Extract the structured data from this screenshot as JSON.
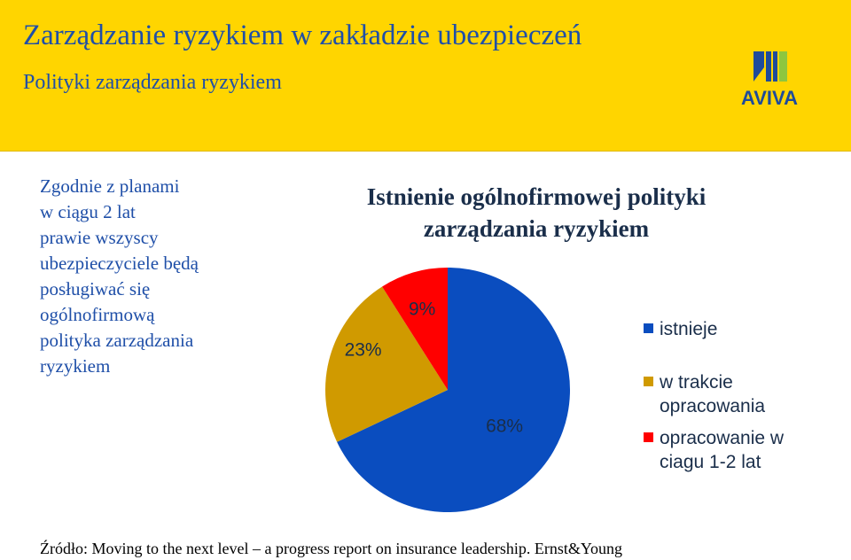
{
  "header": {
    "title": "Zarządzanie ryzykiem w zakładzie ubezpieczeń",
    "subtitle": "Polityki zarządzania ryzykiem",
    "logo_text": "AVIVA"
  },
  "body_text": [
    "Zgodnie z planami",
    "w ciągu 2 lat",
    "prawie wszyscy",
    "ubezpieczyciele będą",
    "posługiwać się",
    "ogólnofirmową",
    "polityka  zarządzania",
    "ryzykiem"
  ],
  "colors": {
    "header_bg": "#FFD500",
    "text_blue": "#1F4FA8",
    "logo_blue": "#1E4B9B",
    "logo_green": "#8DC63F"
  },
  "chart_data": {
    "type": "pie",
    "title_lines": [
      "Istnienie ogólnofirmowej polityki",
      "zarządzania ryzykiem"
    ],
    "slices": [
      {
        "name": "istnieje",
        "value": 68,
        "label": "68%",
        "color": "#0A4DBF"
      },
      {
        "name": "w trakcie opracowania",
        "legend_lines": [
          "w trakcie",
          "opracowania"
        ],
        "value": 23,
        "label": "23%",
        "color": "#D09A00"
      },
      {
        "name": "opracowanie w ciagu 1-2 lat",
        "legend_lines": [
          "opracowanie w",
          "ciagu 1-2 lat"
        ],
        "value": 9,
        "label": "9%",
        "color": "#FF0000"
      }
    ],
    "legend_position": "right"
  },
  "source": "Źródło: Moving to the next level – a progress report on insurance leadership. Ernst&Young"
}
